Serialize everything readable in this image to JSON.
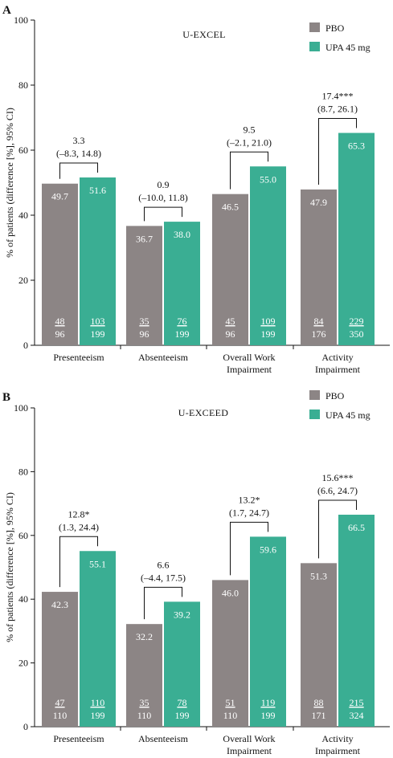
{
  "colors": {
    "pbo": "#8c8585",
    "upa": "#3aae93",
    "axis": "#111111",
    "bracket": "#111111"
  },
  "chart_data": [
    {
      "type": "bar",
      "panel": "A",
      "title": "U-EXCEL",
      "ylabel": "% of patients (difference [%], 95% CI)",
      "ylim": [
        0,
        100
      ],
      "yticks": [
        "0",
        "20",
        "40",
        "60",
        "80",
        "100"
      ],
      "categories": [
        "Presenteeism",
        "Absenteeism",
        "Overall Work|Impairment",
        "Activity|Impairment"
      ],
      "series": [
        {
          "name": "PBO",
          "color": "#8c8585",
          "values": [
            49.7,
            36.7,
            46.5,
            47.9
          ],
          "value_labels": [
            "49.7",
            "36.7",
            "46.5",
            "47.9"
          ],
          "n_responders": [
            "48",
            "35",
            "45",
            "84"
          ],
          "n_total": [
            "96",
            "96",
            "96",
            "176"
          ]
        },
        {
          "name": "UPA 45 mg",
          "color": "#3aae93",
          "values": [
            51.6,
            38.0,
            55.0,
            65.3
          ],
          "value_labels": [
            "51.6",
            "38.0",
            "55.0",
            "65.3"
          ],
          "n_responders": [
            "103",
            "76",
            "109",
            "229"
          ],
          "n_total": [
            "199",
            "199",
            "199",
            "350"
          ]
        }
      ],
      "differences": [
        {
          "value": "3.3",
          "ci": "(–8.3, 14.8)"
        },
        {
          "value": "0.9",
          "ci": "(–10.0, 11.8)"
        },
        {
          "value": "9.5",
          "ci": "(–2.1, 21.0)"
        },
        {
          "value": "17.4***",
          "ci": "(8.7, 26.1)"
        }
      ],
      "legend": "top-right",
      "grid": false
    },
    {
      "type": "bar",
      "panel": "B",
      "title": "U-EXCEED",
      "ylabel": "% of patients (difference [%], 95% CI)",
      "ylim": [
        0,
        100
      ],
      "yticks": [
        "0",
        "20",
        "40",
        "60",
        "80",
        "100"
      ],
      "categories": [
        "Presenteeism",
        "Absenteeism",
        "Overall Work|Impairment",
        "Activity|Impairment"
      ],
      "series": [
        {
          "name": "PBO",
          "color": "#8c8585",
          "values": [
            42.3,
            32.2,
            46.0,
            51.3
          ],
          "value_labels": [
            "42.3",
            "32.2",
            "46.0",
            "51.3"
          ],
          "n_responders": [
            "47",
            "35",
            "51",
            "88"
          ],
          "n_total": [
            "110",
            "110",
            "110",
            "171"
          ]
        },
        {
          "name": "UPA 45 mg",
          "color": "#3aae93",
          "values": [
            55.1,
            39.2,
            59.6,
            66.5
          ],
          "value_labels": [
            "55.1",
            "39.2",
            "59.6",
            "66.5"
          ],
          "n_responders": [
            "110",
            "78",
            "119",
            "215"
          ],
          "n_total": [
            "199",
            "199",
            "199",
            "324"
          ]
        }
      ],
      "differences": [
        {
          "value": "12.8*",
          "ci": "(1.3, 24.4)"
        },
        {
          "value": "6.6",
          "ci": "(–4.4, 17.5)"
        },
        {
          "value": "13.2*",
          "ci": "(1.7, 24.7)"
        },
        {
          "value": "15.6***",
          "ci": "(6.6, 24.7)"
        }
      ],
      "legend": "top-right",
      "grid": false
    }
  ]
}
